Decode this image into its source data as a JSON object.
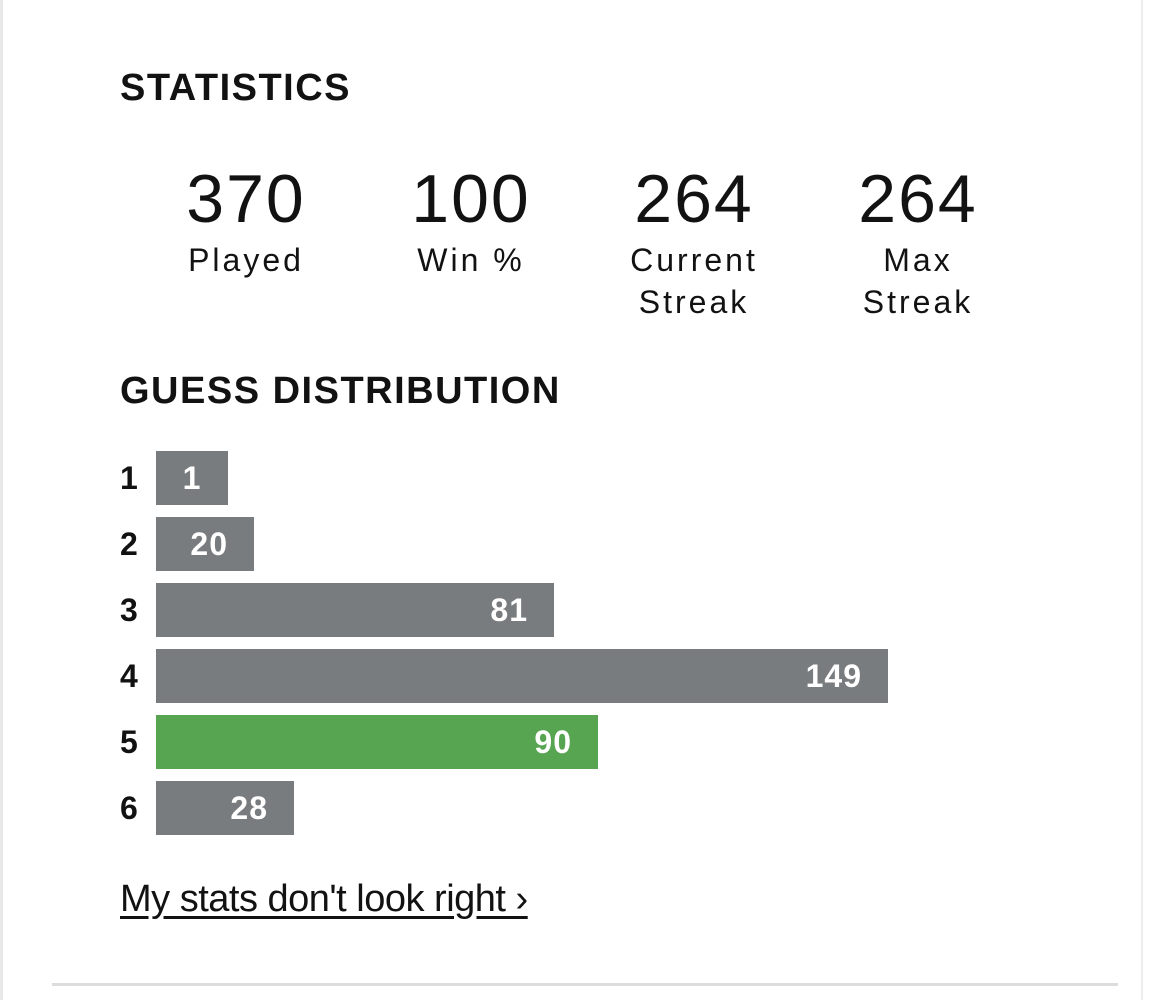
{
  "stats_section": {
    "title": "STATISTICS"
  },
  "stats": {
    "played": {
      "value": "370",
      "label": "Played"
    },
    "win_pct": {
      "value": "100",
      "label": "Win %"
    },
    "current_streak": {
      "value": "264",
      "label": "Current Streak"
    },
    "max_streak": {
      "value": "264",
      "label": "Max Streak"
    }
  },
  "distribution_section": {
    "title": "GUESS DISTRIBUTION"
  },
  "colors": {
    "bar_default": "#787c7e",
    "bar_current": "#57a451"
  },
  "chart_data": {
    "type": "bar",
    "orientation": "horizontal",
    "categories": [
      "1",
      "2",
      "3",
      "4",
      "5",
      "6"
    ],
    "values": [
      1,
      20,
      81,
      149,
      90,
      28
    ],
    "highlighted_category": "5"
  },
  "footer": {
    "link_label": "My stats don't look right ›"
  }
}
